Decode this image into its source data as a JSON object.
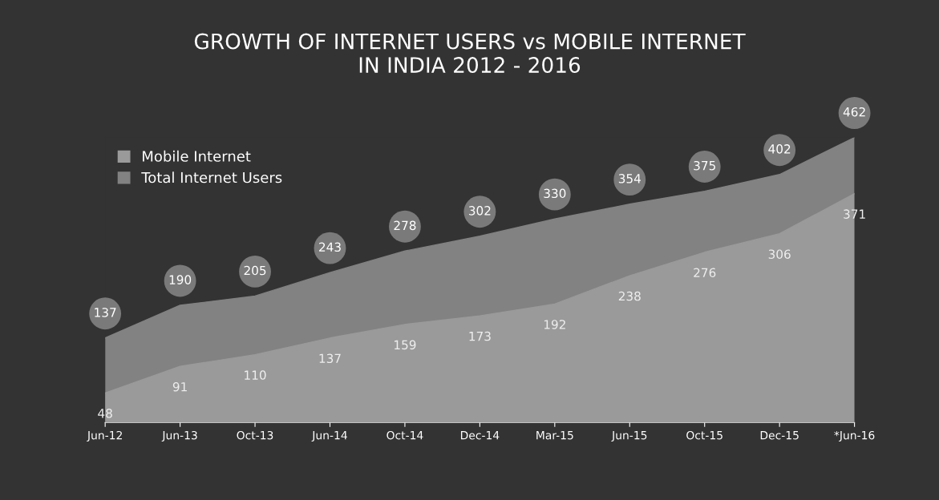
{
  "chart_data": {
    "type": "area",
    "title": "GROWTH OF INTERNET USERS vs MOBILE INTERNET\nIN INDIA 2012 - 2016",
    "categories": [
      "Jun-12",
      "Jun-13",
      "Oct-13",
      "Jun-14",
      "Oct-14",
      "Dec-14",
      "Mar-15",
      "Jun-15",
      "Oct-15",
      "Dec-15",
      "*Jun-16"
    ],
    "series": [
      {
        "name": "Mobile Internet",
        "color": "#9a9a9a",
        "values": [
          48,
          91,
          110,
          137,
          159,
          173,
          192,
          238,
          276,
          306,
          371
        ]
      },
      {
        "name": "Total Internet Users",
        "color": "#828282",
        "values": [
          137,
          190,
          205,
          243,
          278,
          302,
          330,
          354,
          375,
          402,
          462
        ]
      }
    ],
    "tick_labels": "x",
    "legend": "top left",
    "data_labels": true
  }
}
